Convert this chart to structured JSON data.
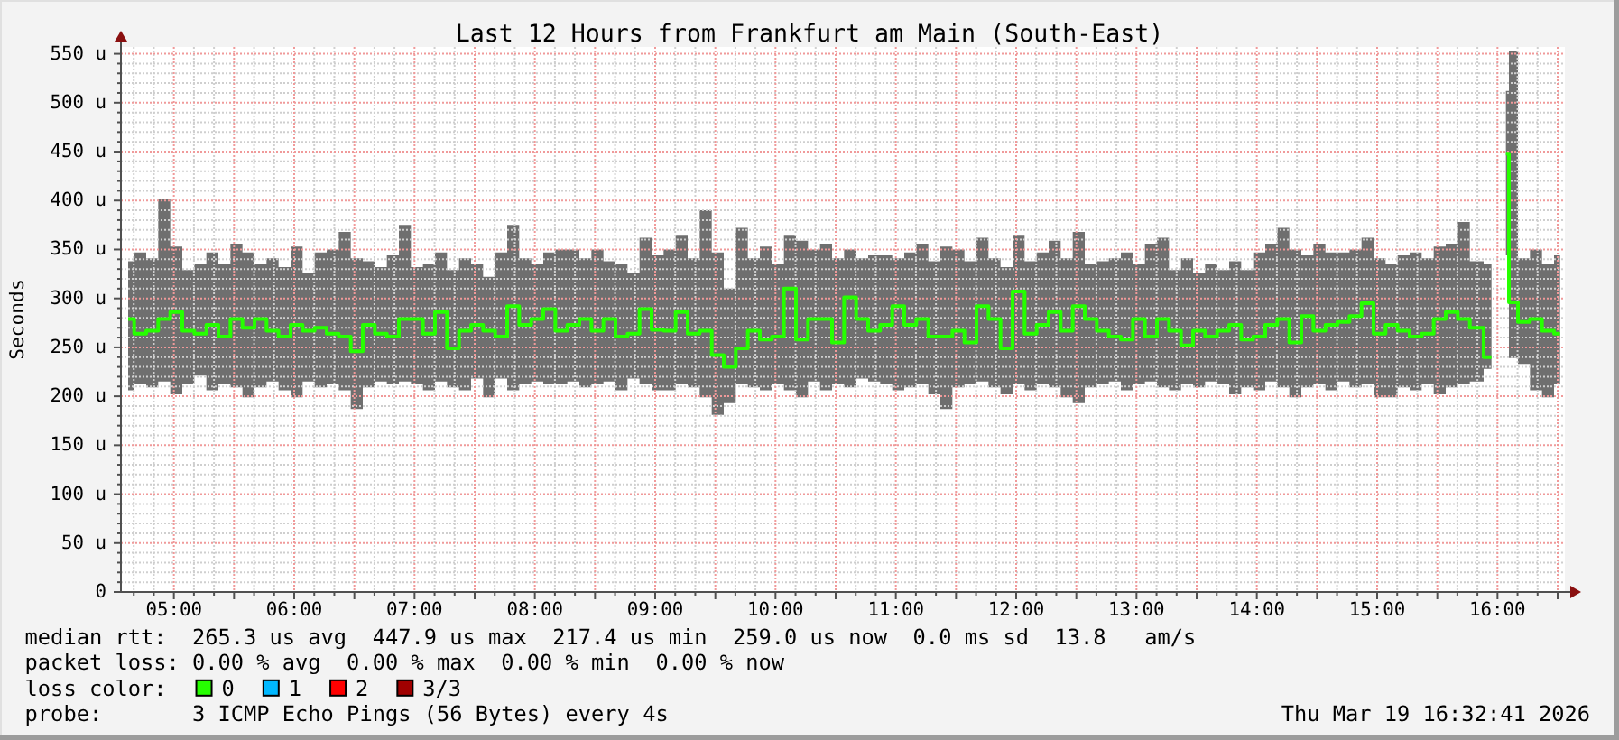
{
  "chart_data": {
    "type": "step",
    "title": "Last 12 Hours from Frankfurt am Main (South-East)",
    "ylabel": "Seconds",
    "x": [
      4.62,
      4.72,
      4.82,
      4.92,
      5.02,
      5.12,
      5.22,
      5.32,
      5.42,
      5.52,
      5.62,
      5.72,
      5.82,
      5.92,
      6.02,
      6.12,
      6.22,
      6.32,
      6.42,
      6.52,
      6.62,
      6.72,
      6.82,
      6.92,
      7.02,
      7.12,
      7.22,
      7.32,
      7.42,
      7.52,
      7.62,
      7.72,
      7.82,
      7.92,
      8.02,
      8.12,
      8.22,
      8.32,
      8.42,
      8.52,
      8.62,
      8.72,
      8.82,
      8.92,
      9.02,
      9.12,
      9.22,
      9.32,
      9.42,
      9.52,
      9.62,
      9.72,
      9.82,
      9.92,
      10.02,
      10.12,
      10.22,
      10.32,
      10.42,
      10.52,
      10.62,
      10.72,
      10.82,
      10.92,
      11.02,
      11.12,
      11.22,
      11.32,
      11.42,
      11.52,
      11.62,
      11.72,
      11.82,
      11.92,
      12.02,
      12.12,
      12.22,
      12.32,
      12.42,
      12.52,
      12.62,
      12.72,
      12.82,
      12.92,
      13.02,
      13.12,
      13.22,
      13.32,
      13.42,
      13.52,
      13.62,
      13.72,
      13.82,
      13.92,
      14.02,
      14.12,
      14.22,
      14.32,
      14.42,
      14.52,
      14.62,
      14.72,
      14.82,
      14.92,
      15.02,
      15.12,
      15.22,
      15.32,
      15.42,
      15.52,
      15.62,
      15.72,
      15.82,
      15.95,
      16.0,
      16.07,
      16.12,
      16.22,
      16.32,
      16.42,
      16.52
    ],
    "series": [
      {
        "name": "0",
        "color": "#26ff00",
        "values": [
          279,
          264,
          267,
          279,
          286,
          267,
          264,
          273,
          261,
          279,
          270,
          279,
          267,
          261,
          273,
          267,
          270,
          264,
          261,
          246,
          273,
          264,
          261,
          279,
          279,
          264,
          286,
          249,
          267,
          273,
          267,
          261,
          292,
          273,
          279,
          289,
          267,
          273,
          279,
          267,
          279,
          261,
          264,
          289,
          268,
          267,
          286,
          264,
          267,
          242,
          230,
          249,
          267,
          258,
          261,
          310,
          258,
          279,
          279,
          255,
          301,
          279,
          267,
          273,
          292,
          273,
          279,
          261,
          261,
          267,
          255,
          292,
          279,
          249,
          307,
          264,
          273,
          286,
          267,
          292,
          279,
          267,
          261,
          258,
          279,
          261,
          279,
          267,
          252,
          267,
          261,
          267,
          273,
          258,
          261,
          273,
          279,
          255,
          282,
          267,
          273,
          276,
          282,
          295,
          264,
          273,
          267,
          261,
          264,
          279,
          286,
          279,
          270,
          240,
          null,
          448,
          296,
          276,
          279,
          267,
          264
        ],
        "lower": [
          206,
          212,
          209,
          215,
          202,
          212,
          221,
          206,
          212,
          209,
          199,
          209,
          215,
          206,
          199,
          215,
          209,
          212,
          206,
          187,
          209,
          215,
          212,
          215,
          212,
          206,
          215,
          209,
          206,
          218,
          199,
          218,
          206,
          212,
          215,
          212,
          212,
          215,
          209,
          212,
          215,
          206,
          218,
          212,
          206,
          206,
          212,
          209,
          199,
          181,
          193,
          212,
          209,
          206,
          212,
          206,
          199,
          215,
          206,
          212,
          209,
          218,
          215,
          212,
          206,
          209,
          212,
          202,
          187,
          209,
          212,
          215,
          209,
          202,
          212,
          206,
          212,
          209,
          199,
          193,
          209,
          212,
          215,
          206,
          212,
          215,
          209,
          206,
          212,
          209,
          215,
          212,
          202,
          209,
          206,
          215,
          209,
          199,
          209,
          212,
          206,
          215,
          209,
          212,
          199,
          199,
          209,
          206,
          212,
          202,
          209,
          212,
          215,
          228,
          null,
          344,
          239,
          233,
          206,
          199,
          212
        ],
        "upper": [
          338,
          347,
          341,
          402,
          353,
          329,
          335,
          347,
          335,
          356,
          347,
          335,
          341,
          332,
          353,
          326,
          347,
          350,
          368,
          341,
          338,
          332,
          344,
          375,
          332,
          335,
          347,
          329,
          341,
          335,
          322,
          347,
          375,
          341,
          335,
          347,
          350,
          350,
          341,
          350,
          338,
          335,
          326,
          362,
          344,
          350,
          365,
          341,
          390,
          347,
          310,
          372,
          341,
          353,
          335,
          365,
          359,
          350,
          356,
          341,
          350,
          341,
          344,
          344,
          341,
          347,
          356,
          338,
          353,
          350,
          338,
          362,
          341,
          332,
          365,
          338,
          347,
          359,
          341,
          368,
          335,
          338,
          341,
          347,
          335,
          356,
          362,
          329,
          341,
          326,
          335,
          329,
          338,
          329,
          347,
          356,
          372,
          350,
          344,
          356,
          347,
          347,
          350,
          362,
          341,
          335,
          344,
          347,
          341,
          353,
          356,
          378,
          338,
          335,
          null,
          512,
          553,
          341,
          350,
          335,
          344
        ]
      },
      {
        "name": "1",
        "color": "#00b8ff",
        "values": [
          null,
          null,
          null,
          null,
          null,
          null,
          null,
          null,
          null,
          null,
          null,
          null,
          null,
          null,
          null,
          null,
          null,
          null,
          null,
          null,
          null,
          null,
          null,
          null,
          null,
          null,
          null,
          null,
          null,
          null,
          null,
          null,
          null,
          null,
          null,
          null,
          null,
          null,
          null,
          null,
          null,
          null,
          null,
          null,
          null,
          null,
          null,
          null,
          null,
          null,
          null,
          null,
          null,
          null,
          null,
          null,
          null,
          null,
          null,
          null,
          null,
          null,
          null,
          null,
          null,
          null,
          null,
          null,
          null,
          null,
          null,
          null,
          null,
          null,
          null,
          null,
          null,
          null,
          null,
          null,
          null,
          null,
          null,
          null,
          null,
          null,
          null,
          null,
          null,
          null,
          null,
          null,
          null,
          null,
          null,
          null,
          null,
          null,
          null,
          null,
          null,
          null,
          null,
          null,
          null,
          null,
          null,
          null,
          null,
          null,
          null,
          null,
          null,
          null,
          null,
          null,
          null,
          null,
          null,
          null,
          null
        ]
      },
      {
        "name": "2",
        "color": "#ff0000",
        "values": [
          null,
          null,
          null,
          null,
          null,
          null,
          null,
          null,
          null,
          null,
          null,
          null,
          null,
          null,
          null,
          null,
          null,
          null,
          null,
          null,
          null,
          null,
          null,
          null,
          null,
          null,
          null,
          null,
          null,
          null,
          null,
          null,
          null,
          null,
          null,
          null,
          null,
          null,
          null,
          null,
          null,
          null,
          null,
          null,
          null,
          null,
          null,
          null,
          null,
          null,
          null,
          null,
          null,
          null,
          null,
          null,
          null,
          null,
          null,
          null,
          null,
          null,
          null,
          null,
          null,
          null,
          null,
          null,
          null,
          null,
          null,
          null,
          null,
          null,
          null,
          null,
          null,
          null,
          null,
          null,
          null,
          null,
          null,
          null,
          null,
          null,
          null,
          null,
          null,
          null,
          null,
          null,
          null,
          null,
          null,
          null,
          null,
          null,
          null,
          null,
          null,
          null,
          null,
          null,
          null,
          null,
          null,
          null,
          null,
          null,
          null,
          null,
          null,
          null,
          null,
          null,
          null,
          null,
          null,
          null,
          null
        ]
      },
      {
        "name": "3/3",
        "color": "#a00000",
        "values": [
          null,
          null,
          null,
          null,
          null,
          null,
          null,
          null,
          null,
          null,
          null,
          null,
          null,
          null,
          null,
          null,
          null,
          null,
          null,
          null,
          null,
          null,
          null,
          null,
          null,
          null,
          null,
          null,
          null,
          null,
          null,
          null,
          null,
          null,
          null,
          null,
          null,
          null,
          null,
          null,
          null,
          null,
          null,
          null,
          null,
          null,
          null,
          null,
          null,
          null,
          null,
          null,
          null,
          null,
          null,
          null,
          null,
          null,
          null,
          null,
          null,
          null,
          null,
          null,
          null,
          null,
          null,
          null,
          null,
          null,
          null,
          null,
          null,
          null,
          null,
          null,
          null,
          null,
          null,
          null,
          null,
          null,
          null,
          null,
          null,
          null,
          null,
          null,
          null,
          null,
          null,
          null,
          null,
          null,
          null,
          null,
          null,
          null,
          null,
          null,
          null,
          null,
          null,
          null,
          null,
          null,
          null,
          null,
          null,
          null,
          null,
          null,
          null,
          null,
          null,
          null,
          null,
          null,
          null,
          null,
          null
        ]
      }
    ],
    "xlim": [
      4.56,
      16.56
    ],
    "xticks": [
      {
        "value": 5,
        "label": "05:00"
      },
      {
        "value": 5.5,
        "label": null
      },
      {
        "value": 6,
        "label": "06:00"
      },
      {
        "value": 6.5,
        "label": null
      },
      {
        "value": 7,
        "label": "07:00"
      },
      {
        "value": 7.5,
        "label": null
      },
      {
        "value": 8,
        "label": "08:00"
      },
      {
        "value": 8.5,
        "label": null
      },
      {
        "value": 9,
        "label": "09:00"
      },
      {
        "value": 9.5,
        "label": null
      },
      {
        "value": 10,
        "label": "10:00"
      },
      {
        "value": 10.5,
        "label": null
      },
      {
        "value": 11,
        "label": "11:00"
      },
      {
        "value": 11.5,
        "label": null
      },
      {
        "value": 12,
        "label": "12:00"
      },
      {
        "value": 12.5,
        "label": null
      },
      {
        "value": 13,
        "label": "13:00"
      },
      {
        "value": 13.5,
        "label": null
      },
      {
        "value": 14,
        "label": "14:00"
      },
      {
        "value": 14.5,
        "label": null
      },
      {
        "value": 15,
        "label": "15:00"
      },
      {
        "value": 15.5,
        "label": null
      },
      {
        "value": 16,
        "label": "16:00"
      },
      {
        "value": 16.5,
        "label": null
      }
    ],
    "ylim": [
      0,
      557
    ],
    "yticks": [
      0,
      {
        "value": 50,
        "label": "50 u"
      },
      {
        "value": 100,
        "label": "100 u"
      },
      {
        "value": 150,
        "label": "150 u"
      },
      {
        "value": 200,
        "label": "200 u"
      },
      {
        "value": 250,
        "label": "250 u"
      },
      {
        "value": 300,
        "label": "300 u"
      },
      {
        "value": 350,
        "label": "350 u"
      },
      {
        "value": 400,
        "label": "400 u"
      },
      {
        "value": 450,
        "label": "450 u"
      },
      {
        "value": 500,
        "label": "500 u"
      },
      {
        "value": 550,
        "label": "550 u"
      }
    ],
    "grid": true,
    "legend": "bottom",
    "legend_title": "loss color:",
    "annotations": [
      "median rtt:  265.3 us avg  447.9 us max  217.4 us min  259.0 us now  0.0 ms sd  13.8   am/s",
      "packet loss: 0.00 % avg  0.00 % max  0.00 % min  0.00 % now",
      "probe:       3 ICMP Echo Pings (56 Bytes) every 4s",
      "Thu Mar 19 16:32:41 2026"
    ]
  }
}
